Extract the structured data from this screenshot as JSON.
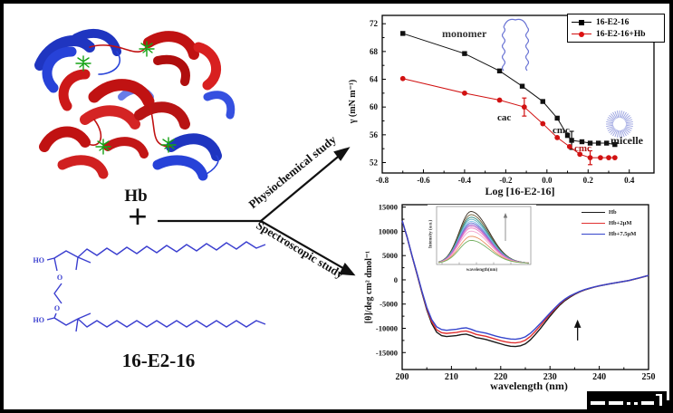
{
  "left": {
    "hb_label": "Hb",
    "plus": "+",
    "physio_label": "Physiochemical study",
    "spectro_label": "Spectroscopic study",
    "surfactant_name": "16-E2-16",
    "atom_labels": {
      "ho": "HO",
      "o": "O"
    }
  },
  "chart_data": [
    {
      "type": "line",
      "xlabel": "Log [16-E2-16]",
      "ylabel": "γ (mN m⁻¹)",
      "xlim": [
        -0.8,
        0.52
      ],
      "ylim": [
        50.5,
        73.2
      ],
      "xticks": [
        -0.8,
        -0.6,
        -0.4,
        -0.2,
        0.0,
        0.2,
        0.4
      ],
      "xtick_labels": [
        "-0.8",
        "-0.6",
        "-0.4",
        "-0.2",
        "0.0",
        "0.2",
        "0.4"
      ],
      "yticks": [
        52,
        56,
        60,
        64,
        68,
        72
      ],
      "ytick_labels": [
        "52",
        "56",
        "60",
        "64",
        "68",
        "72"
      ],
      "grid": false,
      "legend_position": "top-right",
      "series": [
        {
          "name": "16-E2-16",
          "color": "#111111",
          "marker": "square",
          "points": [
            [
              -0.7,
              70.6
            ],
            [
              -0.4,
              67.7
            ],
            [
              -0.23,
              65.2
            ],
            [
              -0.12,
              63.0
            ],
            [
              -0.02,
              60.8
            ],
            [
              0.05,
              58.4
            ],
            [
              0.1,
              55.9
            ],
            [
              0.12,
              55.2
            ],
            [
              0.17,
              55.0
            ],
            [
              0.21,
              54.8
            ],
            [
              0.25,
              54.8
            ],
            [
              0.29,
              54.8
            ],
            [
              0.33,
              54.6
            ]
          ],
          "error_bars": [
            {
              "x": 0.12,
              "y": 55.2,
              "e": 1.3
            }
          ]
        },
        {
          "name": "16-E2-16+Hb",
          "color": "#d11111",
          "marker": "circle",
          "points": [
            [
              -0.7,
              64.1
            ],
            [
              -0.4,
              62.0
            ],
            [
              -0.23,
              61.0
            ],
            [
              -0.11,
              60.0
            ],
            [
              -0.02,
              57.6
            ],
            [
              0.05,
              55.6
            ],
            [
              0.11,
              54.3
            ],
            [
              0.16,
              53.2
            ],
            [
              0.21,
              52.7
            ],
            [
              0.26,
              52.7
            ],
            [
              0.3,
              52.7
            ],
            [
              0.33,
              52.7
            ]
          ],
          "error_bars": [
            {
              "x": -0.11,
              "y": 60.0,
              "e": 1.3
            },
            {
              "x": 0.21,
              "y": 52.7,
              "e": 1.0
            }
          ]
        }
      ],
      "annotations": {
        "monomer": "monomer",
        "cac": "cac",
        "cmc_surfactant": "cmc",
        "cmc_mixture": "cmc",
        "micelle": "micelle"
      },
      "doodles": {
        "monomer_color": "#6a74d4",
        "micelle_color": "#9aa2e0"
      }
    },
    {
      "type": "line",
      "xlabel": "wavelength (nm)",
      "ylabel": "[θ]/deg cm² dmol⁻¹",
      "xlim": [
        200,
        250
      ],
      "ylim": [
        -18500,
        15500
      ],
      "xticks": [
        200,
        210,
        220,
        230,
        240,
        250
      ],
      "xtick_labels": [
        "200",
        "210",
        "220",
        "230",
        "240",
        "250"
      ],
      "yticks": [
        15000,
        10000,
        5000,
        0,
        -5000,
        -10000,
        -15000
      ],
      "ytick_labels": [
        "15000",
        "10000",
        "5000",
        "0",
        "-5000",
        "-10000",
        "-15000"
      ],
      "grid": false,
      "legend_position": "top-right",
      "series": [
        {
          "name": "Hb",
          "color": "#1a1a1a",
          "points": [
            [
              200,
              12200
            ],
            [
              201,
              8800
            ],
            [
              202,
              4900
            ],
            [
              203,
              1200
            ],
            [
              204,
              -2600
            ],
            [
              205,
              -6200
            ],
            [
              206,
              -9000
            ],
            [
              207,
              -10800
            ],
            [
              208,
              -11500
            ],
            [
              209,
              -11700
            ],
            [
              210,
              -11600
            ],
            [
              211,
              -11500
            ],
            [
              212,
              -11300
            ],
            [
              213,
              -11200
            ],
            [
              214,
              -11500
            ],
            [
              215,
              -11900
            ],
            [
              216,
              -12100
            ],
            [
              217,
              -12300
            ],
            [
              218,
              -12600
            ],
            [
              219,
              -12900
            ],
            [
              220,
              -13200
            ],
            [
              221,
              -13500
            ],
            [
              222,
              -13700
            ],
            [
              223,
              -13750
            ],
            [
              224,
              -13600
            ],
            [
              225,
              -13200
            ],
            [
              226,
              -12400
            ],
            [
              227,
              -11300
            ],
            [
              228,
              -10100
            ],
            [
              229,
              -8800
            ],
            [
              230,
              -7500
            ],
            [
              231,
              -6300
            ],
            [
              232,
              -5200
            ],
            [
              233,
              -4300
            ],
            [
              234,
              -3600
            ],
            [
              235,
              -3000
            ],
            [
              236,
              -2500
            ],
            [
              237,
              -2100
            ],
            [
              238,
              -1800
            ],
            [
              239,
              -1500
            ],
            [
              240,
              -1250
            ],
            [
              242,
              -850
            ],
            [
              244,
              -500
            ],
            [
              246,
              -150
            ],
            [
              248,
              350
            ],
            [
              250,
              900
            ]
          ]
        },
        {
          "name": "Hb+2µM",
          "color": "#e03030",
          "points": [
            [
              200,
              12200
            ],
            [
              201,
              8800
            ],
            [
              202,
              4950
            ],
            [
              203,
              1300
            ],
            [
              204,
              -2450
            ],
            [
              205,
              -5950
            ],
            [
              206,
              -8600
            ],
            [
              207,
              -10300
            ],
            [
              208,
              -10900
            ],
            [
              209,
              -11050
            ],
            [
              210,
              -10950
            ],
            [
              211,
              -10850
            ],
            [
              212,
              -10650
            ],
            [
              213,
              -10550
            ],
            [
              214,
              -10850
            ],
            [
              215,
              -11250
            ],
            [
              216,
              -11450
            ],
            [
              217,
              -11650
            ],
            [
              218,
              -11950
            ],
            [
              219,
              -12250
            ],
            [
              220,
              -12550
            ],
            [
              221,
              -12800
            ],
            [
              222,
              -12950
            ],
            [
              223,
              -13000
            ],
            [
              224,
              -12850
            ],
            [
              225,
              -12450
            ],
            [
              226,
              -11700
            ],
            [
              227,
              -10650
            ],
            [
              228,
              -9500
            ],
            [
              229,
              -8300
            ],
            [
              230,
              -7100
            ],
            [
              231,
              -6000
            ],
            [
              232,
              -4950
            ],
            [
              233,
              -4100
            ],
            [
              234,
              -3450
            ],
            [
              235,
              -2900
            ],
            [
              236,
              -2450
            ],
            [
              237,
              -2050
            ],
            [
              238,
              -1750
            ],
            [
              239,
              -1480
            ],
            [
              240,
              -1230
            ],
            [
              242,
              -840
            ],
            [
              244,
              -490
            ],
            [
              246,
              -140
            ],
            [
              248,
              360
            ],
            [
              250,
              910
            ]
          ]
        },
        {
          "name": "Hb+7.5µM",
          "color": "#3545cc",
          "points": [
            [
              200,
              12200
            ],
            [
              201,
              8850
            ],
            [
              202,
              5000
            ],
            [
              203,
              1400
            ],
            [
              204,
              -2300
            ],
            [
              205,
              -5700
            ],
            [
              206,
              -8200
            ],
            [
              207,
              -9700
            ],
            [
              208,
              -10250
            ],
            [
              209,
              -10400
            ],
            [
              210,
              -10300
            ],
            [
              211,
              -10200
            ],
            [
              212,
              -10000
            ],
            [
              213,
              -9900
            ],
            [
              214,
              -10200
            ],
            [
              215,
              -10600
            ],
            [
              216,
              -10800
            ],
            [
              217,
              -11000
            ],
            [
              218,
              -11300
            ],
            [
              219,
              -11600
            ],
            [
              220,
              -11850
            ],
            [
              221,
              -12050
            ],
            [
              222,
              -12200
            ],
            [
              223,
              -12250
            ],
            [
              224,
              -12100
            ],
            [
              225,
              -11750
            ],
            [
              226,
              -11050
            ],
            [
              227,
              -10100
            ],
            [
              228,
              -9050
            ],
            [
              229,
              -7950
            ],
            [
              230,
              -6850
            ],
            [
              231,
              -5800
            ],
            [
              232,
              -4800
            ],
            [
              233,
              -4000
            ],
            [
              234,
              -3350
            ],
            [
              235,
              -2850
            ],
            [
              236,
              -2400
            ],
            [
              237,
              -2020
            ],
            [
              238,
              -1720
            ],
            [
              239,
              -1460
            ],
            [
              240,
              -1220
            ],
            [
              242,
              -830
            ],
            [
              244,
              -480
            ],
            [
              246,
              -130
            ],
            [
              248,
              370
            ],
            [
              250,
              920
            ]
          ]
        }
      ],
      "arrow": {
        "x": 235.6,
        "y_from": -12500,
        "y_to": -8200,
        "direction": "up"
      },
      "inset": {
        "type": "line",
        "xlabel": "wavelength(nm)",
        "ylabel": "Intensity (a.u.)",
        "arrow_direction": "up",
        "peak_x": 0.36,
        "sigma_left": 0.13,
        "sigma_right": 0.2,
        "peaks_rel": [
          1.0,
          0.94,
          0.89,
          0.85,
          0.81,
          0.78,
          0.75,
          0.72,
          0.68,
          0.62,
          0.52,
          0.44
        ],
        "colors": [
          "#352a1e",
          "#6b5b35",
          "#2f8b80",
          "#58aebc",
          "#86c5e8",
          "#6f7fd8",
          "#9070d5",
          "#c95fc2",
          "#ea77c3",
          "#f2a8cf",
          "#e89060",
          "#73ae5f"
        ]
      }
    }
  ]
}
